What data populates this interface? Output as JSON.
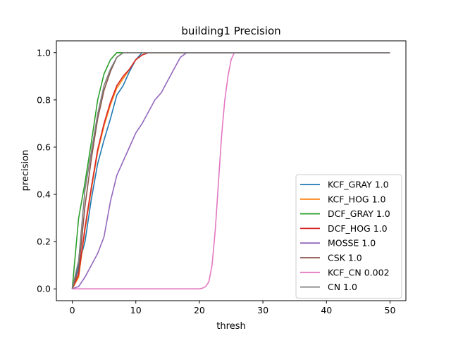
{
  "chart_data": {
    "type": "line",
    "title": "building1 Precision",
    "xlabel": "thresh",
    "ylabel": "precision",
    "xlim": [
      -2.5,
      52.5
    ],
    "ylim": [
      -0.05,
      1.05
    ],
    "xticks": [
      0,
      10,
      20,
      30,
      40,
      50
    ],
    "xtick_labels": [
      "0",
      "10",
      "20",
      "30",
      "40",
      "50"
    ],
    "yticks": [
      0.0,
      0.2,
      0.4,
      0.6,
      0.8,
      1.0
    ],
    "ytick_labels": [
      "0.0",
      "0.2",
      "0.4",
      "0.6",
      "0.8",
      "1.0"
    ],
    "grid": false,
    "legend_position": "lower-right",
    "series": [
      {
        "name": "KCF_GRAY 1.0",
        "color": "#1f77b4",
        "x": [
          0,
          1,
          2,
          3,
          4,
          5,
          6,
          7,
          8,
          9,
          10,
          11,
          12,
          50
        ],
        "y": [
          0,
          0.1,
          0.2,
          0.38,
          0.53,
          0.63,
          0.72,
          0.82,
          0.86,
          0.92,
          0.97,
          1.0,
          1.0,
          1.0
        ]
      },
      {
        "name": "KCF_HOG 1.0",
        "color": "#ff7f0e",
        "x": [
          0,
          1,
          2,
          3,
          4,
          5,
          6,
          7,
          8,
          9,
          10,
          11,
          12,
          50
        ],
        "y": [
          0,
          0.05,
          0.25,
          0.42,
          0.58,
          0.69,
          0.78,
          0.85,
          0.89,
          0.93,
          0.97,
          0.99,
          1.0,
          1.0
        ]
      },
      {
        "name": "DCF_GRAY 1.0",
        "color": "#2ca02c",
        "x": [
          0,
          1,
          2,
          3,
          4,
          5,
          6,
          7,
          8,
          9,
          50
        ],
        "y": [
          0,
          0.3,
          0.45,
          0.62,
          0.8,
          0.91,
          0.97,
          1.0,
          1.0,
          1.0,
          1.0
        ]
      },
      {
        "name": "DCF_HOG 1.0",
        "color": "#d62728",
        "x": [
          0,
          1,
          2,
          3,
          4,
          5,
          6,
          7,
          8,
          9,
          10,
          11,
          12,
          50
        ],
        "y": [
          0,
          0.06,
          0.26,
          0.43,
          0.59,
          0.7,
          0.79,
          0.86,
          0.9,
          0.93,
          0.97,
          0.99,
          1.0,
          1.0
        ]
      },
      {
        "name": "MOSSE 1.0",
        "color": "#9467bd",
        "x": [
          0,
          1,
          2,
          3,
          4,
          5,
          6,
          7,
          8,
          9,
          10,
          11,
          12,
          13,
          14,
          15,
          16,
          17,
          18,
          50
        ],
        "y": [
          0,
          0.01,
          0.05,
          0.1,
          0.15,
          0.22,
          0.37,
          0.48,
          0.54,
          0.6,
          0.66,
          0.7,
          0.75,
          0.8,
          0.83,
          0.88,
          0.93,
          0.98,
          1.0,
          1.0
        ]
      },
      {
        "name": "CSK 1.0",
        "color": "#8c564b",
        "x": [
          0,
          1,
          2,
          3,
          4,
          5,
          6,
          7,
          8,
          9,
          50
        ],
        "y": [
          0,
          0.08,
          0.35,
          0.55,
          0.72,
          0.84,
          0.92,
          0.98,
          1.0,
          1.0,
          1.0
        ]
      },
      {
        "name": "KCF_CN 0.002",
        "color": "#e377c2",
        "x": [
          0,
          20,
          20.5,
          21,
          21.5,
          22,
          22.5,
          23,
          23.5,
          24,
          24.5,
          25,
          25.5,
          50
        ],
        "y": [
          0,
          0,
          0.003,
          0.01,
          0.03,
          0.1,
          0.25,
          0.45,
          0.65,
          0.8,
          0.9,
          0.97,
          1.0,
          1.0
        ]
      },
      {
        "name": "CN 1.0",
        "color": "#7f7f7f",
        "x": [
          0,
          1,
          2,
          3,
          4,
          5,
          6,
          7,
          8,
          9,
          50
        ],
        "y": [
          0,
          0.12,
          0.42,
          0.58,
          0.74,
          0.86,
          0.93,
          0.98,
          1.0,
          1.0,
          1.0
        ]
      }
    ]
  }
}
